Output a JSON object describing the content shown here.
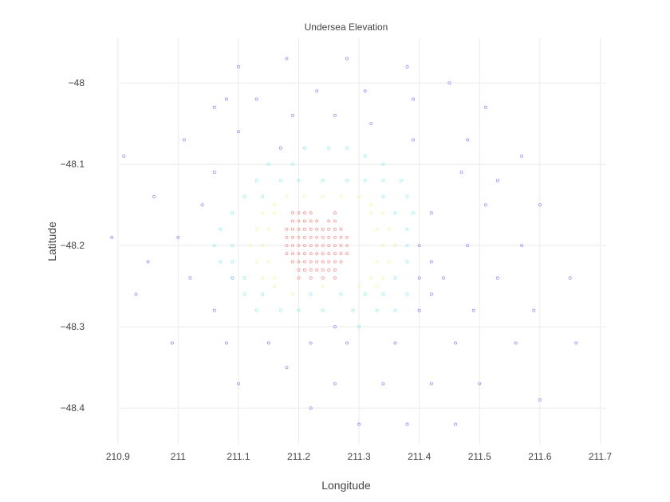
{
  "chart_data": {
    "type": "scatter",
    "title": "Undersea Elevation",
    "xlabel": "Longitude",
    "ylabel": "Latitude",
    "xlim": [
      210.85,
      211.71
    ],
    "ylim": [
      -48.445,
      -47.945
    ],
    "xticks": [
      210.9,
      211,
      211.1,
      211.2,
      211.3,
      211.4,
      211.5,
      211.6,
      211.7
    ],
    "xtick_labels": [
      "210.9",
      "211",
      "211.1",
      "211.2",
      "211.3",
      "211.4",
      "211.5",
      "211.6",
      "211.7"
    ],
    "yticks": [
      -48,
      -48.1,
      -48.2,
      -48.3,
      -48.4
    ],
    "ytick_labels": [
      "−48",
      "−48.1",
      "−48.2",
      "−48.3",
      "−48.4"
    ],
    "grid": true,
    "marker": "open-circle",
    "color_scale": [
      "#2b2bff",
      "#27e6e6",
      "#f6f47b",
      "#ff4b4b"
    ],
    "series": [
      {
        "level": "outer",
        "color": "#5b5bff",
        "points": [
          [
            211.18,
            -47.97
          ],
          [
            211.28,
            -47.97
          ],
          [
            211.1,
            -47.98
          ],
          [
            211.38,
            -47.98
          ],
          [
            211.45,
            -48.0
          ],
          [
            211.23,
            -48.01
          ],
          [
            211.31,
            -48.01
          ],
          [
            211.08,
            -48.02
          ],
          [
            211.13,
            -48.02
          ],
          [
            211.39,
            -48.02
          ],
          [
            211.06,
            -48.03
          ],
          [
            211.51,
            -48.03
          ],
          [
            211.19,
            -48.04
          ],
          [
            211.26,
            -48.04
          ],
          [
            211.32,
            -48.05
          ],
          [
            211.1,
            -48.06
          ],
          [
            211.01,
            -48.07
          ],
          [
            211.39,
            -48.07
          ],
          [
            211.48,
            -48.07
          ],
          [
            211.17,
            -48.08
          ],
          [
            210.91,
            -48.09
          ],
          [
            211.57,
            -48.09
          ],
          [
            211.06,
            -48.11
          ],
          [
            211.47,
            -48.11
          ],
          [
            211.53,
            -48.12
          ],
          [
            210.96,
            -48.14
          ],
          [
            211.04,
            -48.15
          ],
          [
            211.51,
            -48.15
          ],
          [
            211.6,
            -48.15
          ],
          [
            211.42,
            -48.16
          ],
          [
            210.89,
            -48.19
          ],
          [
            211.0,
            -48.19
          ],
          [
            211.4,
            -48.2
          ],
          [
            211.48,
            -48.2
          ],
          [
            211.57,
            -48.2
          ],
          [
            210.95,
            -48.22
          ],
          [
            211.42,
            -48.22
          ],
          [
            211.02,
            -48.24
          ],
          [
            211.09,
            -48.24
          ],
          [
            211.4,
            -48.24
          ],
          [
            211.44,
            -48.24
          ],
          [
            211.53,
            -48.24
          ],
          [
            211.65,
            -48.24
          ],
          [
            210.93,
            -48.26
          ],
          [
            211.42,
            -48.26
          ],
          [
            211.06,
            -48.28
          ],
          [
            211.4,
            -48.28
          ],
          [
            211.49,
            -48.28
          ],
          [
            211.59,
            -48.28
          ],
          [
            211.26,
            -48.3
          ],
          [
            210.99,
            -48.32
          ],
          [
            211.08,
            -48.32
          ],
          [
            211.15,
            -48.32
          ],
          [
            211.22,
            -48.32
          ],
          [
            211.28,
            -48.32
          ],
          [
            211.36,
            -48.32
          ],
          [
            211.46,
            -48.32
          ],
          [
            211.56,
            -48.32
          ],
          [
            211.66,
            -48.32
          ],
          [
            211.18,
            -48.35
          ],
          [
            211.1,
            -48.37
          ],
          [
            211.26,
            -48.37
          ],
          [
            211.34,
            -48.37
          ],
          [
            211.42,
            -48.37
          ],
          [
            211.5,
            -48.37
          ],
          [
            211.6,
            -48.39
          ],
          [
            211.22,
            -48.4
          ],
          [
            211.3,
            -48.42
          ],
          [
            211.38,
            -48.42
          ],
          [
            211.46,
            -48.42
          ]
        ]
      },
      {
        "level": "middle",
        "color": "#5fe8e8",
        "points": [
          [
            211.21,
            -48.08
          ],
          [
            211.25,
            -48.08
          ],
          [
            211.28,
            -48.08
          ],
          [
            211.31,
            -48.09
          ],
          [
            211.19,
            -48.1
          ],
          [
            211.15,
            -48.1
          ],
          [
            211.34,
            -48.1
          ],
          [
            211.13,
            -48.12
          ],
          [
            211.37,
            -48.12
          ],
          [
            211.17,
            -48.12
          ],
          [
            211.2,
            -48.12
          ],
          [
            211.24,
            -48.12
          ],
          [
            211.28,
            -48.12
          ],
          [
            211.31,
            -48.12
          ],
          [
            211.34,
            -48.12
          ],
          [
            211.11,
            -48.14
          ],
          [
            211.14,
            -48.14
          ],
          [
            211.34,
            -48.14
          ],
          [
            211.38,
            -48.14
          ],
          [
            211.09,
            -48.16
          ],
          [
            211.36,
            -48.16
          ],
          [
            211.39,
            -48.16
          ],
          [
            211.07,
            -48.18
          ],
          [
            211.38,
            -48.18
          ],
          [
            211.06,
            -48.2
          ],
          [
            211.09,
            -48.2
          ],
          [
            211.38,
            -48.2
          ],
          [
            211.07,
            -48.22
          ],
          [
            211.09,
            -48.22
          ],
          [
            211.38,
            -48.22
          ],
          [
            211.09,
            -48.24
          ],
          [
            211.11,
            -48.24
          ],
          [
            211.36,
            -48.24
          ],
          [
            211.11,
            -48.26
          ],
          [
            211.14,
            -48.26
          ],
          [
            211.22,
            -48.26
          ],
          [
            211.27,
            -48.26
          ],
          [
            211.31,
            -48.26
          ],
          [
            211.34,
            -48.26
          ],
          [
            211.38,
            -48.26
          ],
          [
            211.13,
            -48.28
          ],
          [
            211.17,
            -48.28
          ],
          [
            211.2,
            -48.28
          ],
          [
            211.24,
            -48.28
          ],
          [
            211.29,
            -48.28
          ],
          [
            211.33,
            -48.28
          ],
          [
            211.36,
            -48.28
          ],
          [
            211.3,
            -48.3
          ]
        ]
      },
      {
        "level": "upper",
        "color": "#f1ef7d",
        "points": [
          [
            211.18,
            -48.14
          ],
          [
            211.21,
            -48.14
          ],
          [
            211.24,
            -48.14
          ],
          [
            211.27,
            -48.14
          ],
          [
            211.3,
            -48.14
          ],
          [
            211.16,
            -48.15
          ],
          [
            211.32,
            -48.15
          ],
          [
            211.14,
            -48.16
          ],
          [
            211.16,
            -48.16
          ],
          [
            211.32,
            -48.16
          ],
          [
            211.34,
            -48.16
          ],
          [
            211.13,
            -48.18
          ],
          [
            211.15,
            -48.18
          ],
          [
            211.33,
            -48.18
          ],
          [
            211.35,
            -48.18
          ],
          [
            211.12,
            -48.2
          ],
          [
            211.14,
            -48.2
          ],
          [
            211.34,
            -48.2
          ],
          [
            211.36,
            -48.2
          ],
          [
            211.13,
            -48.22
          ],
          [
            211.15,
            -48.22
          ],
          [
            211.33,
            -48.22
          ],
          [
            211.35,
            -48.22
          ],
          [
            211.14,
            -48.24
          ],
          [
            211.16,
            -48.24
          ],
          [
            211.32,
            -48.24
          ],
          [
            211.34,
            -48.24
          ],
          [
            211.16,
            -48.25
          ],
          [
            211.19,
            -48.26
          ],
          [
            211.24,
            -48.25
          ],
          [
            211.3,
            -48.25
          ],
          [
            211.33,
            -48.25
          ]
        ]
      },
      {
        "level": "peak",
        "color": "#ff5c5c",
        "points": [
          [
            211.19,
            -48.16
          ],
          [
            211.2,
            -48.16
          ],
          [
            211.21,
            -48.16
          ],
          [
            211.22,
            -48.16
          ],
          [
            211.26,
            -48.16
          ],
          [
            211.19,
            -48.17
          ],
          [
            211.2,
            -48.17
          ],
          [
            211.21,
            -48.17
          ],
          [
            211.22,
            -48.17
          ],
          [
            211.23,
            -48.17
          ],
          [
            211.25,
            -48.17
          ],
          [
            211.26,
            -48.17
          ],
          [
            211.18,
            -48.18
          ],
          [
            211.19,
            -48.18
          ],
          [
            211.2,
            -48.18
          ],
          [
            211.21,
            -48.18
          ],
          [
            211.22,
            -48.18
          ],
          [
            211.23,
            -48.18
          ],
          [
            211.24,
            -48.18
          ],
          [
            211.25,
            -48.18
          ],
          [
            211.26,
            -48.18
          ],
          [
            211.27,
            -48.18
          ],
          [
            211.18,
            -48.19
          ],
          [
            211.19,
            -48.19
          ],
          [
            211.2,
            -48.19
          ],
          [
            211.21,
            -48.19
          ],
          [
            211.22,
            -48.19
          ],
          [
            211.23,
            -48.19
          ],
          [
            211.24,
            -48.19
          ],
          [
            211.25,
            -48.19
          ],
          [
            211.26,
            -48.19
          ],
          [
            211.27,
            -48.19
          ],
          [
            211.28,
            -48.19
          ],
          [
            211.18,
            -48.2
          ],
          [
            211.19,
            -48.2
          ],
          [
            211.2,
            -48.2
          ],
          [
            211.21,
            -48.2
          ],
          [
            211.22,
            -48.2
          ],
          [
            211.23,
            -48.2
          ],
          [
            211.24,
            -48.2
          ],
          [
            211.25,
            -48.2
          ],
          [
            211.26,
            -48.2
          ],
          [
            211.27,
            -48.2
          ],
          [
            211.28,
            -48.2
          ],
          [
            211.18,
            -48.21
          ],
          [
            211.19,
            -48.21
          ],
          [
            211.2,
            -48.21
          ],
          [
            211.21,
            -48.21
          ],
          [
            211.22,
            -48.21
          ],
          [
            211.23,
            -48.21
          ],
          [
            211.24,
            -48.21
          ],
          [
            211.25,
            -48.21
          ],
          [
            211.26,
            -48.21
          ],
          [
            211.27,
            -48.21
          ],
          [
            211.28,
            -48.21
          ],
          [
            211.19,
            -48.22
          ],
          [
            211.2,
            -48.22
          ],
          [
            211.21,
            -48.22
          ],
          [
            211.22,
            -48.22
          ],
          [
            211.23,
            -48.22
          ],
          [
            211.24,
            -48.22
          ],
          [
            211.25,
            -48.22
          ],
          [
            211.26,
            -48.22
          ],
          [
            211.27,
            -48.22
          ],
          [
            211.2,
            -48.23
          ],
          [
            211.21,
            -48.23
          ],
          [
            211.22,
            -48.23
          ],
          [
            211.23,
            -48.23
          ],
          [
            211.24,
            -48.23
          ],
          [
            211.25,
            -48.23
          ],
          [
            211.26,
            -48.23
          ],
          [
            211.2,
            -48.24
          ],
          [
            211.22,
            -48.24
          ],
          [
            211.24,
            -48.24
          ],
          [
            211.26,
            -48.24
          ]
        ]
      }
    ]
  }
}
